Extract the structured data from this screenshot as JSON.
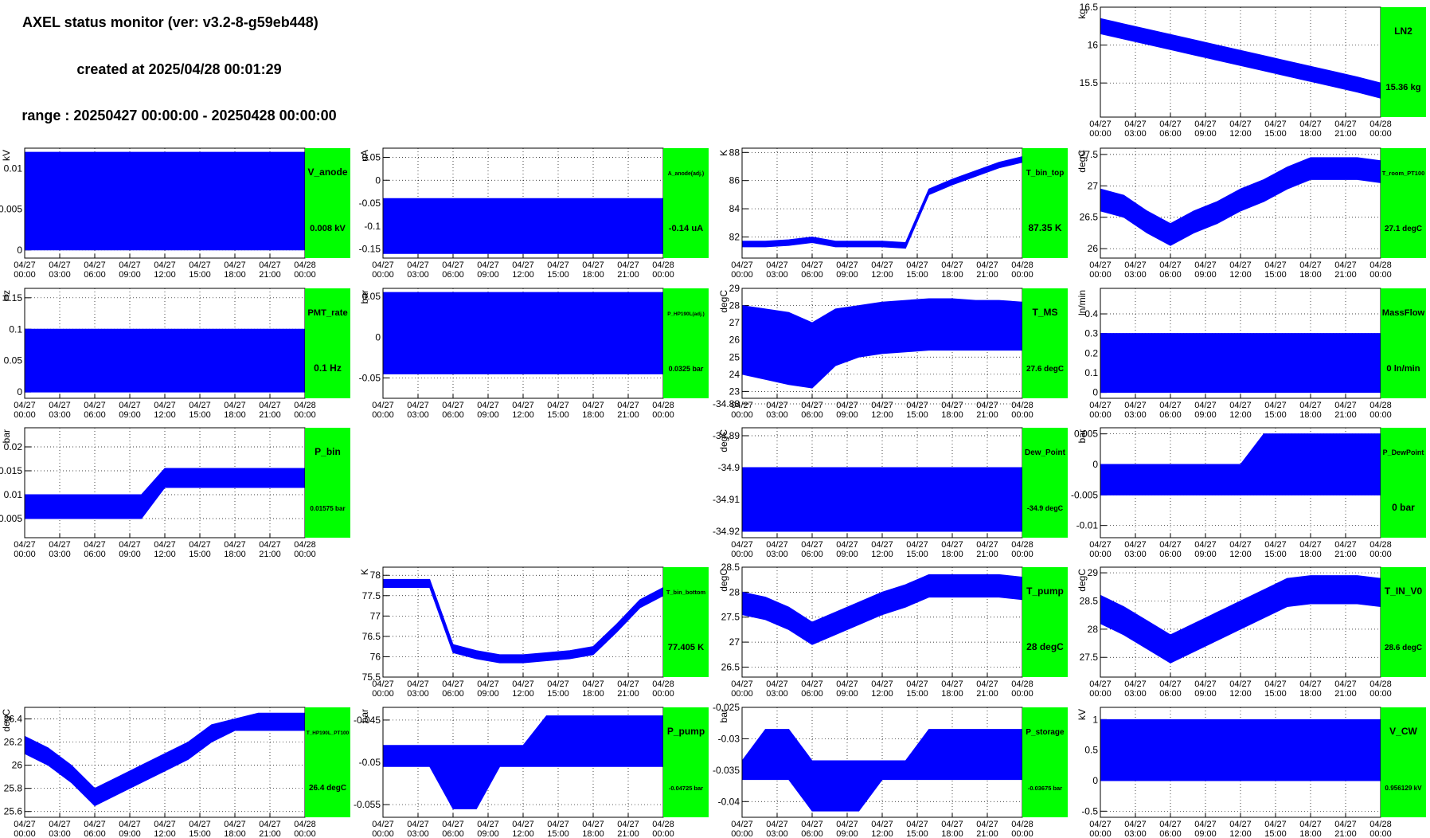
{
  "header": {
    "title": "AXEL status monitor (ver: v3.2-8-g59eb448)",
    "created": "created at 2025/04/28 00:01:29",
    "range": "range : 20250427 00:00:00 - 20250428 00:00:00"
  },
  "time_axis": {
    "xlim": [
      0,
      24
    ],
    "xticks": [
      {
        "value": 0,
        "label": "04/27 00:00"
      },
      {
        "value": 3,
        "label": "04/27 03:00"
      },
      {
        "value": 6,
        "label": "04/27 06:00"
      },
      {
        "value": 9,
        "label": "04/27 09:00"
      },
      {
        "value": 12,
        "label": "04/27 12:00"
      },
      {
        "value": 15,
        "label": "04/27 15:00"
      },
      {
        "value": 18,
        "label": "04/27 18:00"
      },
      {
        "value": 21,
        "label": "04/27 21:00"
      },
      {
        "value": 24,
        "label": "04/28 00:00"
      }
    ]
  },
  "chart_data": [
    {
      "type": "range-area",
      "name": "LN2",
      "unit": "kg",
      "reading": "15.36 kg",
      "color": "#0000ff",
      "grid": true,
      "ylim": [
        15.05,
        16.5
      ],
      "yticks": [
        15.5,
        16,
        16.5
      ],
      "x": [
        0,
        2,
        4,
        6,
        8,
        10,
        12,
        14,
        16,
        18,
        20,
        22,
        24
      ],
      "high": [
        16.35,
        16.28,
        16.21,
        16.14,
        16.07,
        16.0,
        15.93,
        15.86,
        15.79,
        15.72,
        15.65,
        15.58,
        15.5
      ],
      "low": [
        16.15,
        16.08,
        16.01,
        15.94,
        15.87,
        15.8,
        15.73,
        15.66,
        15.59,
        15.52,
        15.45,
        15.38,
        15.3
      ]
    },
    {
      "type": "range-area",
      "name": "V_anode",
      "unit": "kV",
      "reading": "0.008 kV",
      "color": "#0000ff",
      "grid": true,
      "ylim": [
        -0.001,
        0.0125
      ],
      "yticks": [
        0,
        0.005,
        0.01
      ],
      "x": [
        0,
        2,
        4,
        6,
        8,
        10,
        12,
        14,
        16,
        18,
        20,
        22,
        24
      ],
      "high": [
        0.012,
        0.012,
        0.012,
        0.012,
        0.012,
        0.012,
        0.012,
        0.012,
        0.012,
        0.012,
        0.012,
        0.012,
        0.012
      ],
      "low": [
        0,
        0,
        0,
        0,
        0,
        0,
        0,
        0,
        0,
        0,
        0,
        0,
        0
      ]
    },
    {
      "type": "range-area",
      "name": "A_anode(adj.)",
      "unit": "uA",
      "reading": "-0.14 uA",
      "color": "#0000ff",
      "grid": true,
      "ylim": [
        -0.17,
        0.07
      ],
      "yticks": [
        -0.15,
        -0.1,
        -0.05,
        0,
        0.05
      ],
      "x": [
        0,
        2,
        4,
        6,
        8,
        10,
        12,
        14,
        16,
        18,
        20,
        22,
        24
      ],
      "high": [
        -0.04,
        -0.04,
        -0.04,
        -0.04,
        -0.04,
        -0.04,
        -0.04,
        -0.04,
        -0.04,
        -0.04,
        -0.04,
        -0.04,
        -0.04
      ],
      "low": [
        -0.16,
        -0.16,
        -0.16,
        -0.16,
        -0.16,
        -0.16,
        -0.16,
        -0.16,
        -0.16,
        -0.16,
        -0.16,
        -0.16,
        -0.16
      ]
    },
    {
      "type": "range-area",
      "name": "T_bin_top",
      "unit": "K",
      "reading": "87.35 K",
      "color": "#0000ff",
      "grid": true,
      "ylim": [
        80.5,
        88.3
      ],
      "yticks": [
        82,
        84,
        86,
        88
      ],
      "x": [
        0,
        2,
        4,
        6,
        8,
        10,
        12,
        14,
        16,
        18,
        20,
        22,
        24
      ],
      "high": [
        81.7,
        81.7,
        81.8,
        82.0,
        81.7,
        81.7,
        81.7,
        81.6,
        85.4,
        86.1,
        86.7,
        87.3,
        87.7
      ],
      "low": [
        81.3,
        81.3,
        81.4,
        81.6,
        81.3,
        81.3,
        81.3,
        81.2,
        85.0,
        85.7,
        86.3,
        86.9,
        87.3
      ]
    },
    {
      "type": "range-area",
      "name": "T_room_PT100",
      "unit": "degC",
      "reading": "27.1 degC",
      "color": "#0000ff",
      "grid": true,
      "ylim": [
        25.85,
        27.6
      ],
      "yticks": [
        26,
        26.5,
        27,
        27.5
      ],
      "x": [
        0,
        2,
        4,
        6,
        8,
        10,
        12,
        14,
        16,
        18,
        20,
        22,
        24
      ],
      "high": [
        26.95,
        26.85,
        26.6,
        26.4,
        26.6,
        26.75,
        26.95,
        27.1,
        27.3,
        27.45,
        27.45,
        27.45,
        27.4
      ],
      "low": [
        26.6,
        26.5,
        26.25,
        26.05,
        26.25,
        26.4,
        26.6,
        26.75,
        26.95,
        27.1,
        27.1,
        27.1,
        27.05
      ]
    },
    {
      "type": "range-area",
      "name": "PMT_rate",
      "unit": "Hz",
      "reading": "0.1 Hz",
      "color": "#0000ff",
      "grid": true,
      "ylim": [
        -0.01,
        0.165
      ],
      "yticks": [
        0,
        0.05,
        0.1,
        0.15
      ],
      "x": [
        0,
        2,
        4,
        6,
        8,
        10,
        12,
        14,
        16,
        18,
        20,
        22,
        24
      ],
      "high": [
        0.1,
        0.1,
        0.1,
        0.1,
        0.1,
        0.1,
        0.1,
        0.1,
        0.1,
        0.1,
        0.1,
        0.1,
        0.1
      ],
      "low": [
        0,
        0,
        0,
        0,
        0,
        0,
        0,
        0,
        0,
        0,
        0,
        0,
        0
      ]
    },
    {
      "type": "range-area",
      "name": "P_HP190L(adj.)",
      "unit": "bar",
      "reading": "0.0325 bar",
      "color": "#0000ff",
      "grid": true,
      "ylim": [
        -0.075,
        0.06
      ],
      "yticks": [
        -0.05,
        0,
        0.05
      ],
      "x": [
        0,
        2,
        4,
        6,
        8,
        10,
        12,
        14,
        16,
        18,
        20,
        22,
        24
      ],
      "high": [
        0.055,
        0.055,
        0.055,
        0.055,
        0.055,
        0.055,
        0.055,
        0.055,
        0.055,
        0.055,
        0.055,
        0.055,
        0.055
      ],
      "low": [
        -0.045,
        -0.045,
        -0.045,
        -0.045,
        -0.045,
        -0.045,
        -0.045,
        -0.045,
        -0.045,
        -0.045,
        -0.045,
        -0.045,
        -0.045
      ]
    },
    {
      "type": "range-area",
      "name": "T_MS",
      "unit": "degC",
      "reading": "27.6 degC",
      "color": "#0000ff",
      "grid": true,
      "ylim": [
        22.6,
        29
      ],
      "yticks": [
        23,
        24,
        25,
        26,
        27,
        28,
        29
      ],
      "x": [
        0,
        2,
        4,
        6,
        8,
        10,
        12,
        14,
        16,
        18,
        20,
        22,
        24
      ],
      "high": [
        28.0,
        27.8,
        27.6,
        27.0,
        27.8,
        28.0,
        28.2,
        28.3,
        28.4,
        28.4,
        28.3,
        28.3,
        28.2
      ],
      "low": [
        24.0,
        23.7,
        23.4,
        23.2,
        24.5,
        25.0,
        25.2,
        25.3,
        25.4,
        25.4,
        25.4,
        25.4,
        25.4
      ]
    },
    {
      "type": "range-area",
      "name": "MassFlow",
      "unit": "ln/min",
      "reading": "0 ln/min",
      "color": "#0000ff",
      "grid": true,
      "ylim": [
        -0.03,
        0.53
      ],
      "yticks": [
        0,
        0.1,
        0.2,
        0.3,
        0.4
      ],
      "x": [
        0,
        2,
        4,
        6,
        8,
        10,
        12,
        14,
        16,
        18,
        20,
        22,
        24
      ],
      "high": [
        0.3,
        0.3,
        0.3,
        0.3,
        0.3,
        0.3,
        0.3,
        0.3,
        0.3,
        0.3,
        0.3,
        0.3,
        0.3
      ],
      "low": [
        0,
        0,
        0,
        0,
        0,
        0,
        0,
        0,
        0,
        0,
        0,
        0,
        0
      ]
    },
    {
      "type": "range-area",
      "name": "P_bin",
      "unit": "bar",
      "reading": "0.01575 bar",
      "color": "#0000ff",
      "grid": true,
      "ylim": [
        0.001,
        0.024
      ],
      "yticks": [
        0.005,
        0.01,
        0.015,
        0.02
      ],
      "x": [
        0,
        2,
        4,
        6,
        8,
        10,
        12,
        14,
        16,
        18,
        20,
        22,
        24
      ],
      "high": [
        0.01,
        0.01,
        0.01,
        0.01,
        0.01,
        0.01,
        0.0155,
        0.0155,
        0.0155,
        0.0155,
        0.0155,
        0.0155,
        0.0155
      ],
      "low": [
        0.005,
        0.005,
        0.005,
        0.005,
        0.005,
        0.005,
        0.0115,
        0.0115,
        0.0115,
        0.0115,
        0.0115,
        0.0115,
        0.0115
      ]
    },
    {
      "type": "range-area",
      "name": "Dew_Point",
      "unit": "degC",
      "reading": "-34.9 degC",
      "color": "#0000ff",
      "grid": true,
      "ylim": [
        -34.922,
        -34.8875
      ],
      "yticks": [
        -34.92,
        -34.91,
        -34.9,
        -34.89,
        -34.88
      ],
      "x": [
        0,
        2,
        4,
        6,
        8,
        10,
        12,
        14,
        16,
        18,
        20,
        22,
        24
      ],
      "high": [
        -34.9,
        -34.9,
        -34.9,
        -34.9,
        -34.9,
        -34.9,
        -34.9,
        -34.9,
        -34.9,
        -34.9,
        -34.9,
        -34.9,
        -34.9
      ],
      "low": [
        -34.92,
        -34.92,
        -34.92,
        -34.92,
        -34.92,
        -34.92,
        -34.92,
        -34.92,
        -34.92,
        -34.92,
        -34.92,
        -34.92,
        -34.92
      ]
    },
    {
      "type": "range-area",
      "name": "P_DewPoint",
      "unit": "bar",
      "reading": "0 bar",
      "color": "#0000ff",
      "grid": true,
      "ylim": [
        -0.012,
        0.006
      ],
      "yticks": [
        -0.01,
        -0.005,
        0,
        0.005
      ],
      "x": [
        0,
        2,
        4,
        6,
        8,
        10,
        12,
        14,
        16,
        18,
        20,
        22,
        24
      ],
      "high": [
        0,
        0,
        0,
        0,
        0,
        0,
        0,
        0.005,
        0.005,
        0.005,
        0.005,
        0.005,
        0.005
      ],
      "low": [
        -0.005,
        -0.005,
        -0.005,
        -0.005,
        -0.005,
        -0.005,
        -0.005,
        -0.005,
        -0.005,
        -0.005,
        -0.005,
        -0.005,
        -0.005
      ]
    },
    {
      "type": "range-area",
      "name": "T_bin_bottom",
      "unit": "K",
      "reading": "77.405 K",
      "color": "#0000ff",
      "grid": true,
      "ylim": [
        75.5,
        78.2
      ],
      "yticks": [
        75.5,
        76,
        76.5,
        77,
        77.5,
        78
      ],
      "x": [
        0,
        2,
        4,
        6,
        8,
        10,
        12,
        14,
        16,
        18,
        20,
        22,
        24
      ],
      "high": [
        77.9,
        77.9,
        77.9,
        76.3,
        76.15,
        76.05,
        76.05,
        76.1,
        76.15,
        76.25,
        76.8,
        77.4,
        77.7
      ],
      "low": [
        77.7,
        77.7,
        77.7,
        76.1,
        75.95,
        75.85,
        75.85,
        75.9,
        75.95,
        76.05,
        76.6,
        77.2,
        77.5
      ]
    },
    {
      "type": "range-area",
      "name": "T_pump",
      "unit": "degC",
      "reading": "28 degC",
      "color": "#0000ff",
      "grid": true,
      "ylim": [
        26.3,
        28.5
      ],
      "yticks": [
        26.5,
        27,
        27.5,
        28,
        28.5
      ],
      "x": [
        0,
        2,
        4,
        6,
        8,
        10,
        12,
        14,
        16,
        18,
        20,
        22,
        24
      ],
      "high": [
        28.0,
        27.9,
        27.7,
        27.4,
        27.6,
        27.8,
        28.0,
        28.15,
        28.35,
        28.35,
        28.35,
        28.35,
        28.3
      ],
      "low": [
        27.55,
        27.45,
        27.25,
        26.95,
        27.15,
        27.35,
        27.55,
        27.7,
        27.9,
        27.9,
        27.9,
        27.9,
        27.85
      ]
    },
    {
      "type": "range-area",
      "name": "T_IN_V0",
      "unit": "degC",
      "reading": "28.6 degC",
      "color": "#0000ff",
      "grid": true,
      "ylim": [
        27.15,
        29.1
      ],
      "yticks": [
        27.5,
        28,
        28.5,
        29
      ],
      "x": [
        0,
        2,
        4,
        6,
        8,
        10,
        12,
        14,
        16,
        18,
        20,
        22,
        24
      ],
      "high": [
        28.6,
        28.4,
        28.15,
        27.9,
        28.1,
        28.3,
        28.5,
        28.7,
        28.9,
        28.95,
        28.95,
        28.95,
        28.9
      ],
      "low": [
        28.1,
        27.9,
        27.65,
        27.4,
        27.6,
        27.8,
        28.0,
        28.2,
        28.4,
        28.45,
        28.45,
        28.45,
        28.4
      ]
    },
    {
      "type": "range-area",
      "name": "T_HP190L_PT100",
      "unit": "degC",
      "reading": "26.4 degC",
      "color": "#0000ff",
      "grid": true,
      "ylim": [
        25.55,
        26.5
      ],
      "yticks": [
        25.6,
        25.8,
        26,
        26.2,
        26.4
      ],
      "x": [
        0,
        2,
        4,
        6,
        8,
        10,
        12,
        14,
        16,
        18,
        20,
        22,
        24
      ],
      "high": [
        26.25,
        26.15,
        26.0,
        25.8,
        25.9,
        26.0,
        26.1,
        26.2,
        26.35,
        26.4,
        26.45,
        26.45,
        26.45
      ],
      "low": [
        26.1,
        26.0,
        25.85,
        25.65,
        25.75,
        25.85,
        25.95,
        26.05,
        26.2,
        26.3,
        26.3,
        26.3,
        26.3
      ]
    },
    {
      "type": "range-area",
      "name": "P_pump",
      "unit": "bar",
      "reading": "-0.04725 bar",
      "color": "#0000ff",
      "grid": true,
      "ylim": [
        -0.0565,
        -0.0435
      ],
      "yticks": [
        -0.055,
        -0.05,
        -0.045
      ],
      "x": [
        0,
        2,
        4,
        6,
        8,
        10,
        12,
        14,
        16,
        18,
        20,
        22,
        24
      ],
      "high": [
        -0.048,
        -0.048,
        -0.048,
        -0.048,
        -0.048,
        -0.048,
        -0.048,
        -0.0445,
        -0.0445,
        -0.0445,
        -0.0445,
        -0.0445,
        -0.0445
      ],
      "low": [
        -0.0505,
        -0.0505,
        -0.0505,
        -0.0555,
        -0.0555,
        -0.0505,
        -0.0505,
        -0.0505,
        -0.0505,
        -0.0505,
        -0.0505,
        -0.0505,
        -0.0505
      ]
    },
    {
      "type": "range-area",
      "name": "P_storage",
      "unit": "bar",
      "reading": "-0.03675 bar",
      "color": "#0000ff",
      "grid": true,
      "ylim": [
        -0.0425,
        -0.025
      ],
      "yticks": [
        -0.04,
        -0.035,
        -0.03,
        -0.025
      ],
      "x": [
        0,
        2,
        4,
        6,
        8,
        10,
        12,
        14,
        16,
        18,
        20,
        22,
        24
      ],
      "high": [
        -0.0335,
        -0.0285,
        -0.0285,
        -0.0335,
        -0.0335,
        -0.0335,
        -0.0335,
        -0.0335,
        -0.0285,
        -0.0285,
        -0.0285,
        -0.0285,
        -0.0285
      ],
      "low": [
        -0.0365,
        -0.0365,
        -0.0365,
        -0.0415,
        -0.0415,
        -0.0415,
        -0.0365,
        -0.0365,
        -0.0365,
        -0.0365,
        -0.0365,
        -0.0365,
        -0.0365
      ]
    },
    {
      "type": "range-area",
      "name": "V_CW",
      "unit": "kV",
      "reading": "0.956129 kV",
      "color": "#0000ff",
      "grid": true,
      "ylim": [
        -0.6,
        1.2
      ],
      "yticks": [
        -0.5,
        0,
        0.5,
        1
      ],
      "x": [
        0,
        2,
        4,
        6,
        8,
        10,
        12,
        14,
        16,
        18,
        20,
        22,
        24
      ],
      "high": [
        1,
        1,
        1,
        1,
        1,
        1,
        1,
        1,
        1,
        1,
        1,
        1,
        1
      ],
      "low": [
        0,
        0,
        0,
        0,
        0,
        0,
        0,
        0,
        0,
        0,
        0,
        0,
        0
      ]
    }
  ]
}
